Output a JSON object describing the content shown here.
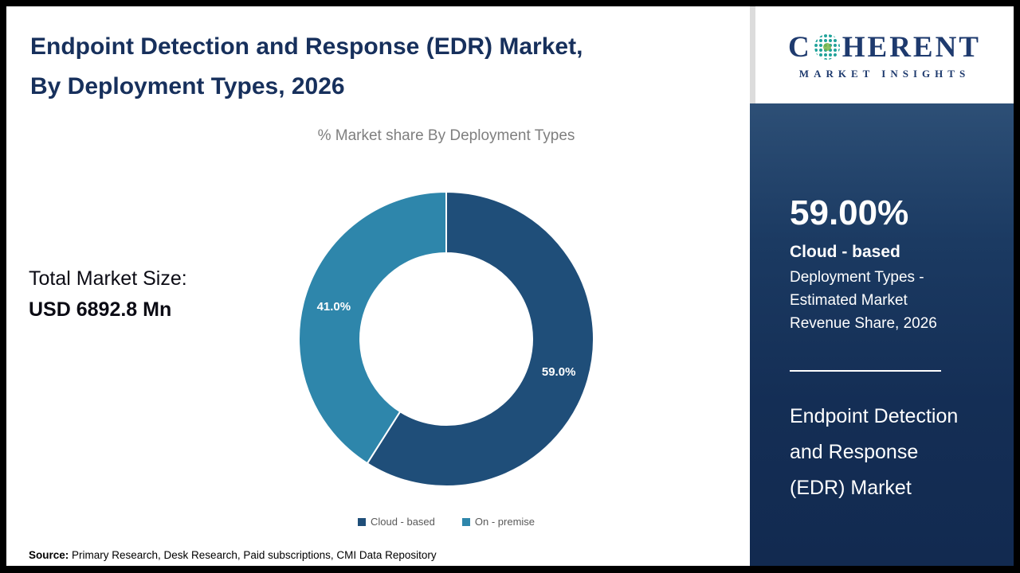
{
  "header": {
    "title_line1": "Endpoint Detection and Response (EDR) Market,",
    "title_line2": "By Deployment Types, 2026"
  },
  "chart_data": {
    "type": "pie",
    "donut": true,
    "title": "% Market share By Deployment Types",
    "start_angle_deg": 0,
    "direction": "clockwise",
    "legend_position": "bottom",
    "slices": [
      {
        "label": "Cloud - based",
        "value": 59.0,
        "display": "59.0%",
        "color": "#1F4E79"
      },
      {
        "label": "On - premise",
        "value": 41.0,
        "display": "41.0%",
        "color": "#2E86AB"
      }
    ]
  },
  "left_panel": {
    "total_label": "Total Market Size:",
    "total_value": "USD 6892.8 Mn"
  },
  "footer": {
    "source_label": "Source:",
    "source_text": " Primary Research, Desk Research, Paid subscriptions, CMI Data Repository"
  },
  "sidebar": {
    "logo": {
      "brand_c": "C",
      "brand_rest": "HERENT",
      "subtitle": "MARKET INSIGHTS",
      "globe_icon": "dotted-globe"
    },
    "stat_value": "59.00%",
    "stat_label": "Cloud - based",
    "stat_desc": "Deployment Types - Estimated Market Revenue Share, 2026",
    "market_name": "Endpoint Detection and Response (EDR) Market"
  },
  "colors": {
    "title_navy": "#17305c",
    "sidebar_navy_top": "#2d4f76",
    "sidebar_navy_bottom": "#122a50",
    "subtitle_gray": "#7f7f7f",
    "legend_text_gray": "#595959",
    "logo_navy": "#1e3a6e",
    "logo_teal": "#1fa29a"
  }
}
